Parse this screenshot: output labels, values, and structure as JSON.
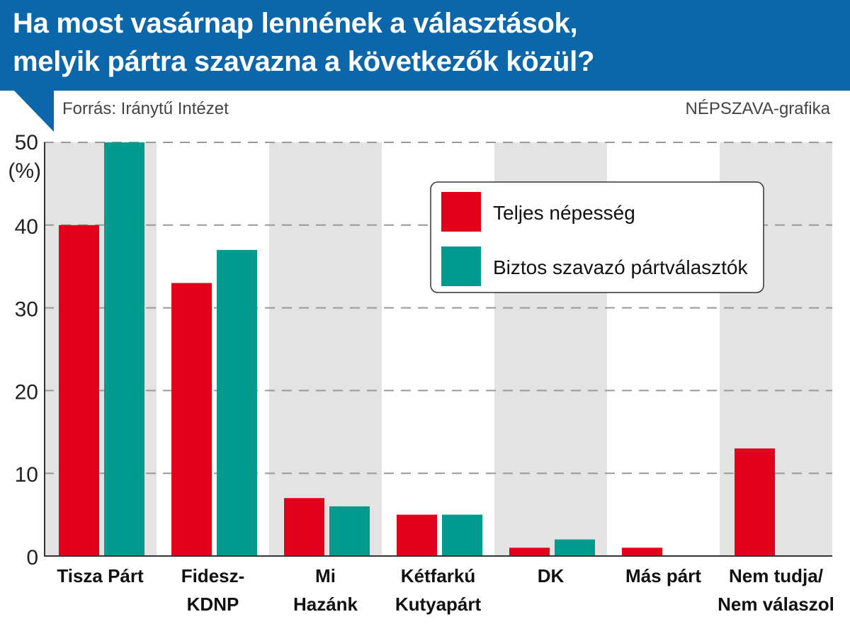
{
  "header": {
    "title_line1": "Ha most vasárnap lennének a választások,",
    "title_line2": "melyik pártra szavazna a következők közül?"
  },
  "source": "Forrás: Iránytű Intézet",
  "credit": "NÉPSZAVA-grafika",
  "colors": {
    "header": "#0b67a9",
    "series1": "#e2001a",
    "series2": "#009a8f",
    "band": "#e3e3e3"
  },
  "chart_data": {
    "type": "bar",
    "title": "Ha most vasárnap lennének a választások, melyik pártra szavazna a következők közül?",
    "ylabel": "(%)",
    "ylim": [
      0,
      50
    ],
    "yticks": [
      0,
      10,
      20,
      30,
      40,
      50
    ],
    "grid": true,
    "legend_position": "top-right",
    "categories": [
      [
        "Tisza Párt"
      ],
      [
        "Fidesz-",
        "KDNP"
      ],
      [
        "Mi",
        "Hazánk"
      ],
      [
        "Kétfarkú",
        "Kutyapárt"
      ],
      [
        "DK"
      ],
      [
        "Más párt"
      ],
      [
        "Nem tudja/",
        "Nem válaszol"
      ]
    ],
    "series": [
      {
        "name": "Teljes népesség",
        "values": [
          40,
          33,
          7,
          5,
          1,
          1,
          13
        ]
      },
      {
        "name": "Biztos szavazó pártválasztók",
        "values": [
          50,
          37,
          6,
          5,
          2,
          0,
          null
        ]
      }
    ]
  }
}
